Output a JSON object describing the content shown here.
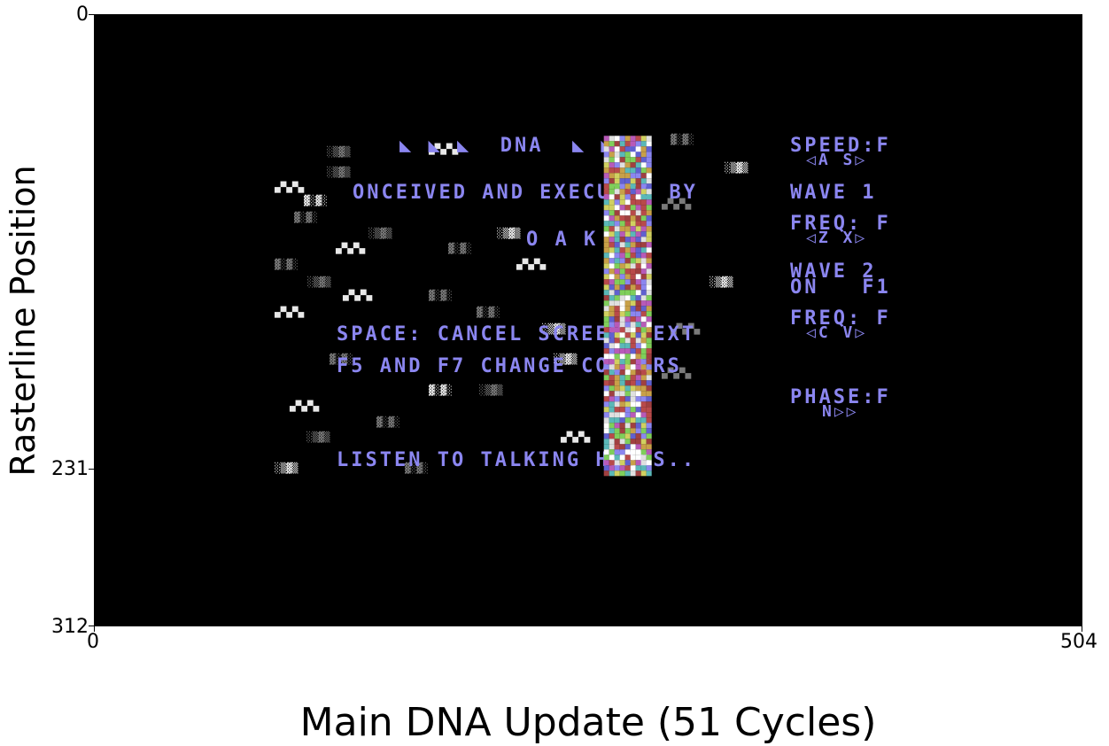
{
  "chart_data": {
    "type": "heatmap",
    "title": "",
    "xlabel": "Main DNA Update (51 Cycles)",
    "ylabel": "Rasterline Position",
    "xlim": [
      0,
      504
    ],
    "ylim": [
      0,
      312
    ],
    "x_ticks": [
      "0",
      "504"
    ],
    "y_ticks": [
      "0",
      "231",
      "312"
    ],
    "background_color": "#000000",
    "text_color": "#8b86f0",
    "highlight_band": {
      "x_start": 260,
      "x_end": 283,
      "y_start": 62,
      "y_end": 235
    },
    "screen_text": {
      "left_lines": [
        "◣ ◣ ◣  DNA  ◣ ◣ ◣",
        "ONCEIVED AND EXECUTED BY",
        "O A K",
        "SPACE: CANCEL SCREEN TEXT",
        "F5 AND F7 CHANGE COLOURS",
        "LISTEN TO TALKING HEADS.."
      ],
      "right_lines": [
        "SPEED:F",
        "◁A S▷",
        "WAVE 1",
        "FREQ: F",
        "◁Z X▷",
        "WAVE 2",
        "ON   F1",
        "FREQ: F",
        "◁C V▷",
        "PHASE:F",
        "N▷▷"
      ]
    }
  }
}
